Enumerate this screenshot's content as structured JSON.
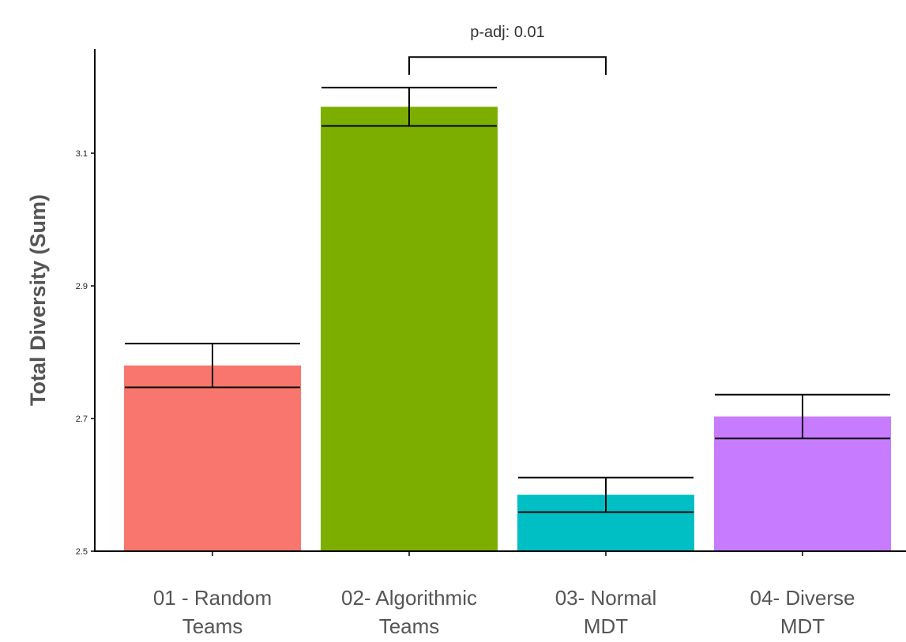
{
  "chart_data": {
    "type": "bar",
    "title": "",
    "xlabel": "",
    "ylabel": "Total Diversity (Sum)",
    "ylim": [
      2.5,
      3.22
    ],
    "yticks": [
      2.5,
      2.7,
      2.9,
      3.1
    ],
    "ytick_labels": [
      "2.5",
      "2.7",
      "2.9",
      "3.1"
    ],
    "grid": false,
    "legend": "none",
    "categories": [
      [
        "01 - Random",
        "Teams"
      ],
      [
        "02- Algorithmic",
        "Teams"
      ],
      [
        "03- Normal",
        "MDT"
      ],
      [
        "04- Diverse",
        "MDT"
      ]
    ],
    "values": [
      2.78,
      3.17,
      2.585,
      2.703
    ],
    "error_low": [
      2.747,
      3.141,
      2.559,
      2.67
    ],
    "error_high": [
      2.813,
      3.199,
      2.611,
      2.736
    ],
    "colors": [
      "#F8766D",
      "#7CAE00",
      "#00BFC4",
      "#C77CFF"
    ],
    "annotations": [
      {
        "text": "p-adj: 0.01",
        "from_category": 1,
        "to_category": 2,
        "y": 3.245,
        "tip_y": 3.218
      }
    ]
  }
}
